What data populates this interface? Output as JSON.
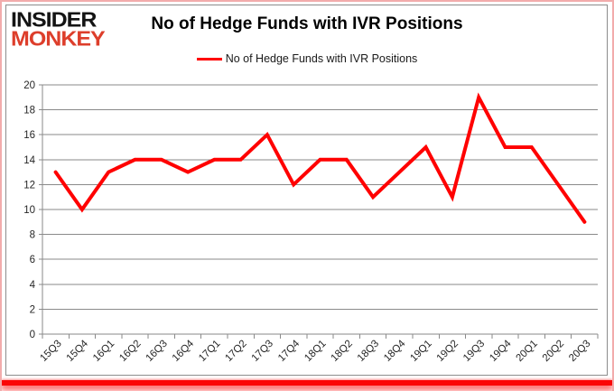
{
  "logo": {
    "line1": "INSIDER",
    "line2": "MONKEY"
  },
  "title": "No of Hedge Funds with IVR Positions",
  "legend": {
    "label": "No of Hedge Funds with IVR Positions"
  },
  "chart_data": {
    "type": "line",
    "title": "No of Hedge Funds with IVR Positions",
    "categories": [
      "15Q3",
      "15Q4",
      "16Q1",
      "16Q2",
      "16Q3",
      "16Q4",
      "17Q1",
      "17Q2",
      "17Q3",
      "17Q4",
      "18Q1",
      "18Q2",
      "18Q3",
      "18Q4",
      "19Q1",
      "19Q2",
      "19Q3",
      "19Q4",
      "20Q1",
      "20Q2",
      "20Q3"
    ],
    "series": [
      {
        "name": "No of Hedge Funds with IVR Positions",
        "values": [
          13,
          10,
          13,
          14,
          14,
          13,
          14,
          14,
          16,
          12,
          14,
          14,
          11,
          13,
          15,
          11,
          19,
          15,
          15,
          12,
          9
        ]
      }
    ],
    "xlabel": "",
    "ylabel": "",
    "ylim": [
      0,
      20
    ],
    "ytick_step": 2,
    "grid": "horizontal",
    "legend_position": "top-center",
    "colors": {
      "line": "#FF0000",
      "grid": "#8A8A8A",
      "axis_text": "#262626",
      "logo_red": "#DD3E2B",
      "frame_pink": "#F2ACAC",
      "bottom_bar": "#FB0505"
    }
  }
}
